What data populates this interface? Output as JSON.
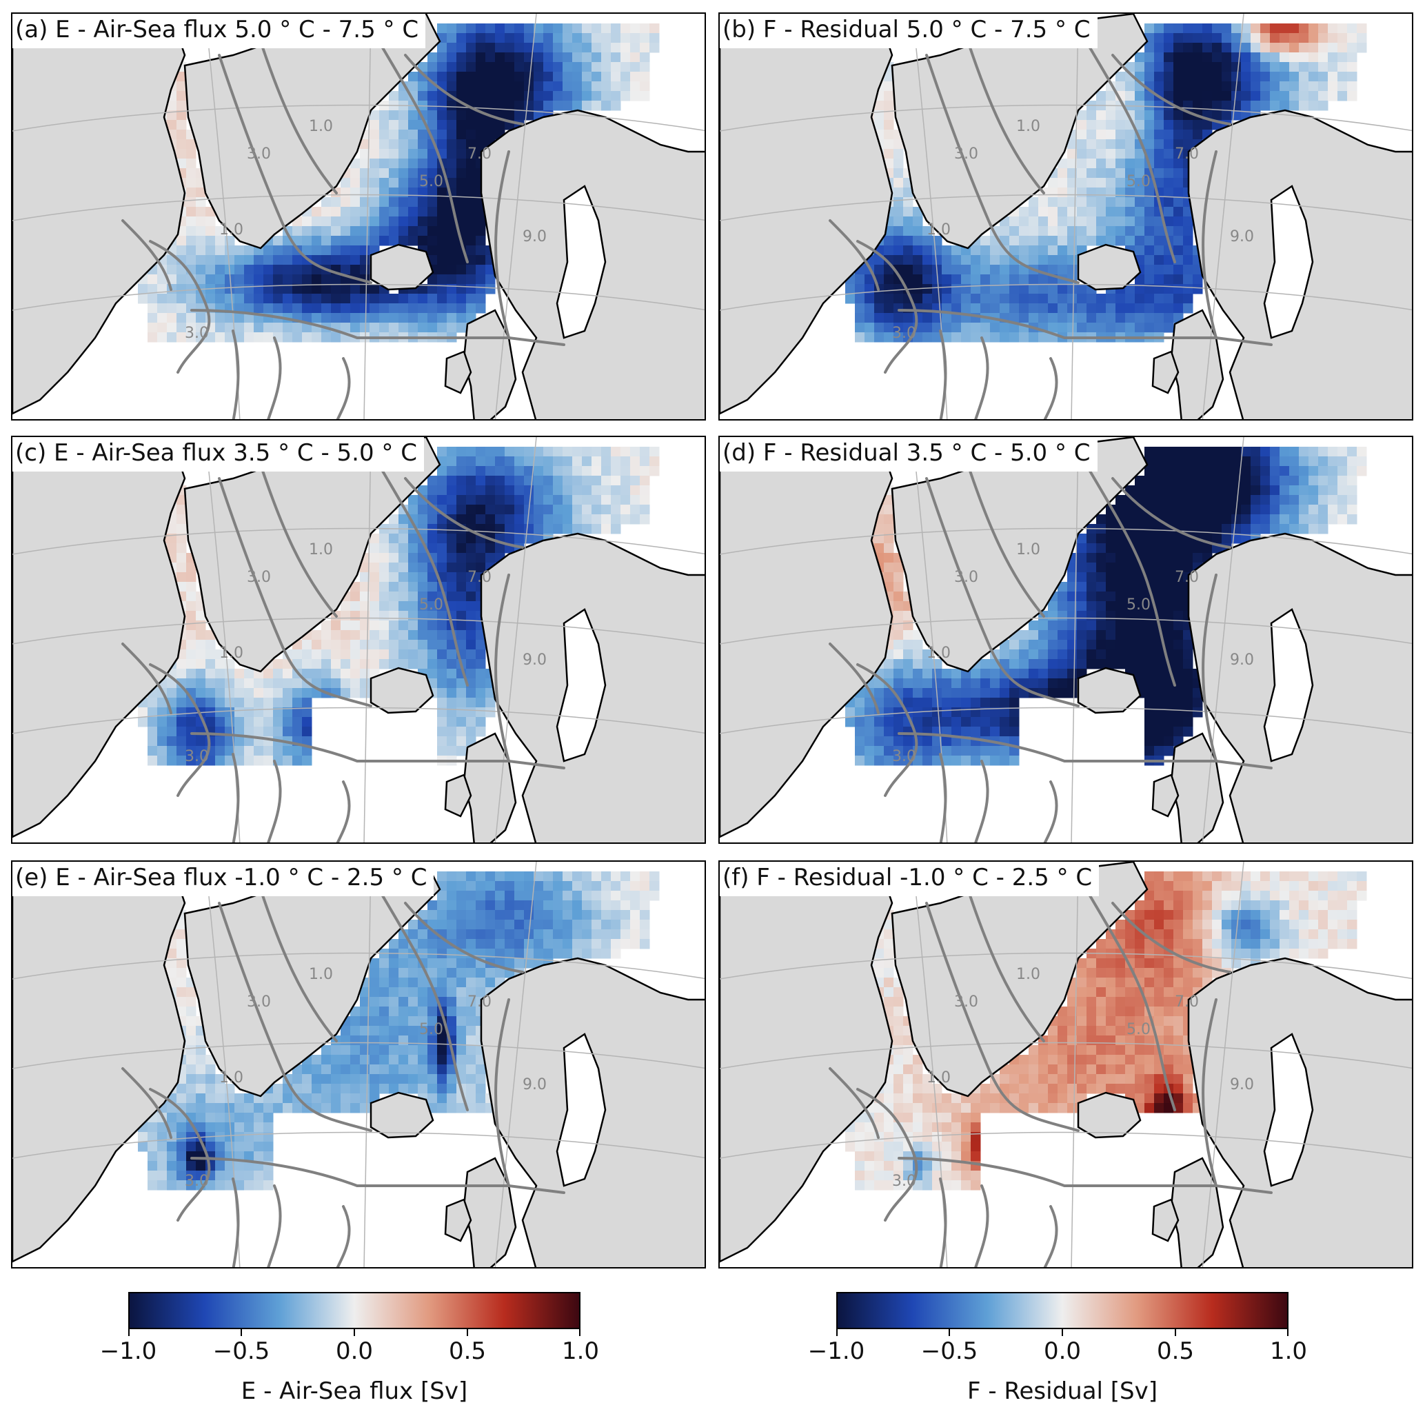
{
  "panels": [
    {
      "title": "(a) E - Air-Sea flux 5.0 ° C - 7.5 ° C",
      "field": "E",
      "pattern": "warm"
    },
    {
      "title": "(b) F - Residual 5.0 ° C - 7.5 ° C",
      "field": "F",
      "pattern": "warm"
    },
    {
      "title": "(c) E - Air-Sea flux 3.5 ° C - 5.0 ° C",
      "field": "E",
      "pattern": "mid"
    },
    {
      "title": "(d) F - Residual 3.5 ° C - 5.0 ° C",
      "field": "F",
      "pattern": "mid"
    },
    {
      "title": "(e) E - Air-Sea flux -1.0 ° C - 2.5 ° C",
      "field": "E",
      "pattern": "cold"
    },
    {
      "title": "(f) F - Residual -1.0 ° C - 2.5 ° C",
      "field": "F",
      "pattern": "cold"
    }
  ],
  "contour_labels": [
    "1.0",
    "3.0",
    "5.0",
    "7.0",
    "9.0"
  ],
  "colorbars": [
    {
      "label": "E - Air-Sea flux [Sv]",
      "ticks": [
        "−1.0",
        "−0.5",
        "0.0",
        "0.5",
        "1.0"
      ]
    },
    {
      "label": "F - Residual [Sv]",
      "ticks": [
        "−1.0",
        "−0.5",
        "0.0",
        "0.5",
        "1.0"
      ]
    }
  ],
  "colormap": {
    "name": "RdBu_r",
    "min": -1.0,
    "max": 1.0,
    "stops": [
      "#0b1540",
      "#1f47b4",
      "#5fa0d6",
      "#eeeeee",
      "#e19a80",
      "#b82c1e",
      "#3d0811"
    ]
  },
  "colors": {
    "land": "#d9d9d9",
    "ocean": "#ffffff",
    "contour": "#808080",
    "graticule": "#b4b4b4",
    "coast": "#000000"
  }
}
